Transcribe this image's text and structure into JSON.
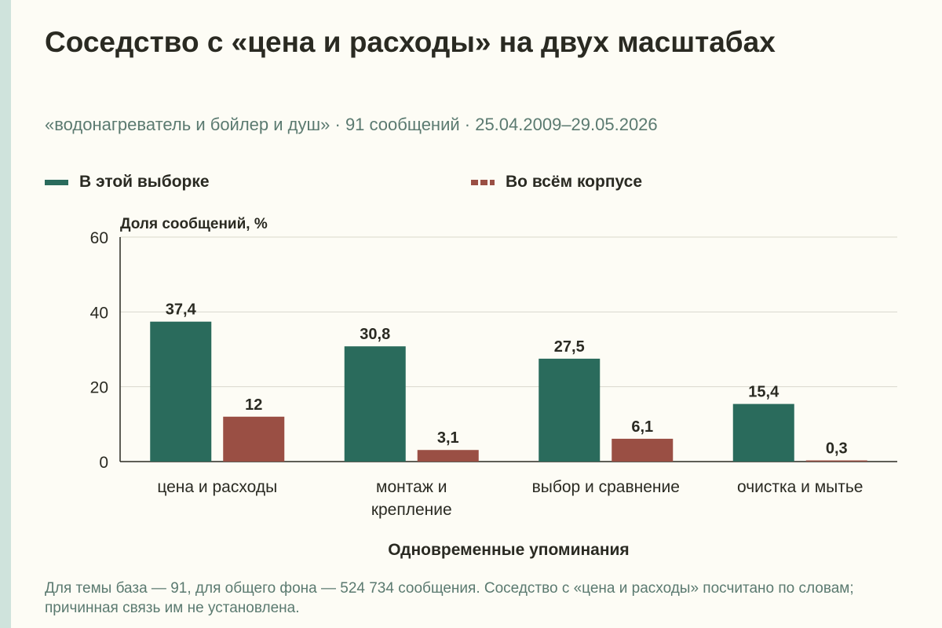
{
  "title": "Соседство с «цена и расходы» на двух масштабах",
  "subtitle": "«водонагреватель и бойлер и душ» · 91 сообщений · 25.04.2009–29.05.2026",
  "legend": {
    "sample": "В этой выборке",
    "corpus": "Во всём корпусе"
  },
  "caption": "Для темы база — 91, для общего фона — 524 734 сообщения. Соседство с «цена и расходы» посчитано по словам; причинная связь им не установлена.",
  "colors": {
    "sample": "#2a6b5c",
    "corpus": "#9a4f44",
    "background": "#fdfcf5",
    "grid": "#d9d7cc"
  },
  "chart_data": {
    "type": "bar",
    "ylabel": "Доля сообщений, %",
    "xlabel": "Одновременные упоминания",
    "ylim": [
      0,
      60
    ],
    "yticks": [
      0,
      20,
      40,
      60
    ],
    "grid": true,
    "legend_position": "top",
    "categories": [
      [
        "цена и расходы"
      ],
      [
        "монтаж и",
        "крепление"
      ],
      [
        "выбор и сравнение"
      ],
      [
        "очистка и мытье"
      ]
    ],
    "series": [
      {
        "name": "В этой выборке",
        "values": [
          37.4,
          30.8,
          27.5,
          15.4
        ],
        "labels": [
          "37,4",
          "30,8",
          "27,5",
          "15,4"
        ]
      },
      {
        "name": "Во всём корпусе",
        "values": [
          12,
          3.1,
          6.1,
          0.3
        ],
        "labels": [
          "12",
          "3,1",
          "6,1",
          "0,3"
        ]
      }
    ]
  }
}
